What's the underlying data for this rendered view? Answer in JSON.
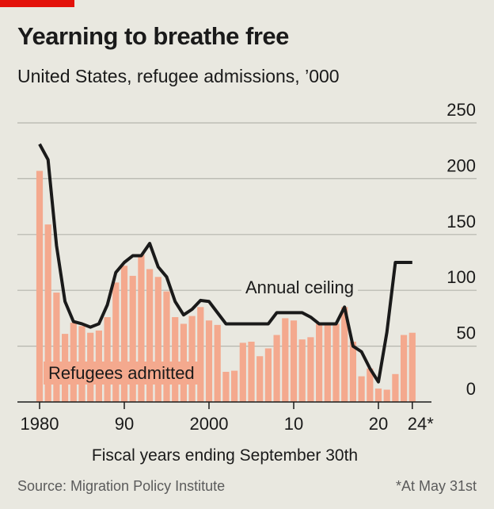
{
  "title": "Yearning to breathe free",
  "subtitle": "United States, refugee admissions, ’000",
  "source": "Source: Migration Policy Institute",
  "footnote": "*At May 31st",
  "colors": {
    "bars": "#f4a98e",
    "line": "#1a1a1a",
    "grid": "#b5b5ad",
    "brand": "#e3120b",
    "background": "#e9e8e0"
  },
  "chart_data": {
    "type": "bar",
    "title": "Yearning to breathe free",
    "xlabel": "Fiscal years ending September 30th",
    "ylabel": "",
    "ylim": [
      0,
      250
    ],
    "yticks": [
      0,
      50,
      100,
      150,
      200,
      250
    ],
    "yticklabels": [
      "0",
      "50",
      "100",
      "150",
      "200",
      "250"
    ],
    "xticks": [
      1980,
      1990,
      2000,
      2010,
      2020,
      2024
    ],
    "xticklabels": [
      "1980",
      "90",
      "2000",
      "10",
      "20",
      "24*"
    ],
    "categories": [
      1980,
      1981,
      1982,
      1983,
      1984,
      1985,
      1986,
      1987,
      1988,
      1989,
      1990,
      1991,
      1992,
      1993,
      1994,
      1995,
      1996,
      1997,
      1998,
      1999,
      2000,
      2001,
      2002,
      2003,
      2004,
      2005,
      2006,
      2007,
      2008,
      2009,
      2010,
      2011,
      2012,
      2013,
      2014,
      2015,
      2016,
      2017,
      2018,
      2019,
      2020,
      2021,
      2022,
      2023,
      2024
    ],
    "series": [
      {
        "name": "Refugees admitted",
        "type": "bar",
        "values": [
          207,
          159,
          98,
          61,
          71,
          68,
          62,
          64,
          76,
          107,
          122,
          113,
          132,
          119,
          112,
          99,
          76,
          70,
          77,
          85,
          73,
          69,
          27,
          28,
          53,
          54,
          41,
          48,
          60,
          75,
          73,
          56,
          58,
          70,
          70,
          70,
          85,
          54,
          23,
          30,
          12,
          11,
          25,
          60,
          62
        ]
      },
      {
        "name": "Annual ceiling",
        "type": "line",
        "values": [
          231,
          217,
          140,
          90,
          72,
          70,
          67,
          70,
          87,
          116,
          125,
          131,
          131,
          142,
          121,
          112,
          90,
          78,
          83,
          91,
          90,
          80,
          70,
          70,
          70,
          70,
          70,
          70,
          80,
          80,
          80,
          80,
          76,
          70,
          70,
          70,
          85,
          50,
          45,
          30,
          18,
          62.5,
          125,
          125,
          125
        ]
      }
    ],
    "annotations": {
      "line_label": "Annual ceiling",
      "bar_label": "Refugees admitted"
    },
    "grid": true
  }
}
